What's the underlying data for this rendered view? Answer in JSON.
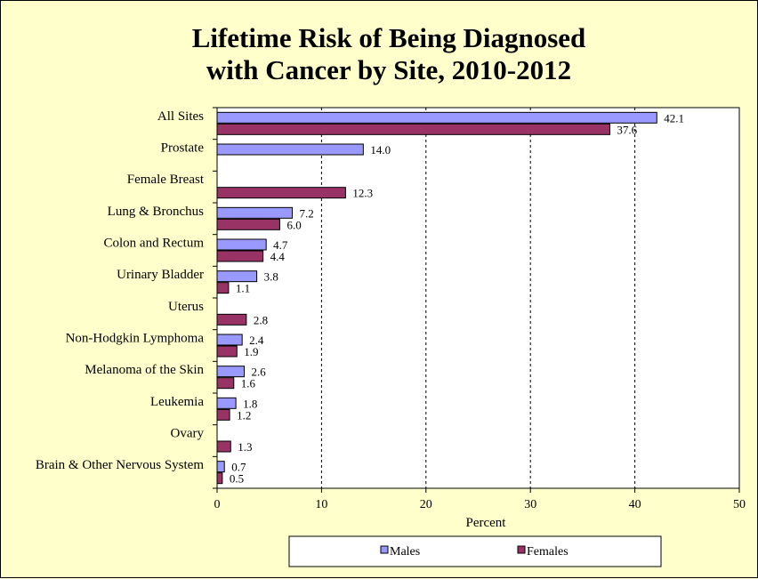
{
  "chart_data": {
    "type": "bar",
    "orientation": "horizontal",
    "title_lines": [
      "Lifetime Risk of Being Diagnosed",
      "with Cancer by Site, 2010-2012"
    ],
    "xlabel": "Percent",
    "xlim": [
      0,
      50
    ],
    "xticks": [
      "0",
      "10",
      "20",
      "30",
      "40",
      "50"
    ],
    "gridlines": "vertical dashed",
    "legend_position": "bottom",
    "categories": [
      "All Sites",
      "Prostate",
      "Female Breast",
      "Lung & Bronchus",
      "Colon and Rectum",
      "Urinary Bladder",
      "Uterus",
      "Non-Hodgkin Lymphoma",
      "Melanoma of the Skin",
      "Leukemia",
      "Ovary",
      "Brain & Other Nervous System"
    ],
    "series": [
      {
        "name": "Males",
        "color": "#9999ff",
        "values": [
          42.1,
          14.0,
          null,
          7.2,
          4.7,
          3.8,
          null,
          2.4,
          2.6,
          1.8,
          null,
          0.7
        ],
        "labels": [
          "42.1",
          "14.0",
          "",
          "7.2",
          "4.7",
          "3.8",
          "",
          "2.4",
          "2.6",
          "1.8",
          "",
          "0.7"
        ]
      },
      {
        "name": "Females",
        "color": "#993366",
        "values": [
          37.6,
          null,
          12.3,
          6.0,
          4.4,
          1.1,
          2.8,
          1.9,
          1.6,
          1.2,
          1.3,
          0.5
        ],
        "labels": [
          "37.6",
          "",
          "12.3",
          "6.0",
          "4.4",
          "1.1",
          "2.8",
          "1.9",
          "1.6",
          "1.2",
          "1.3",
          "0.5"
        ]
      }
    ]
  }
}
